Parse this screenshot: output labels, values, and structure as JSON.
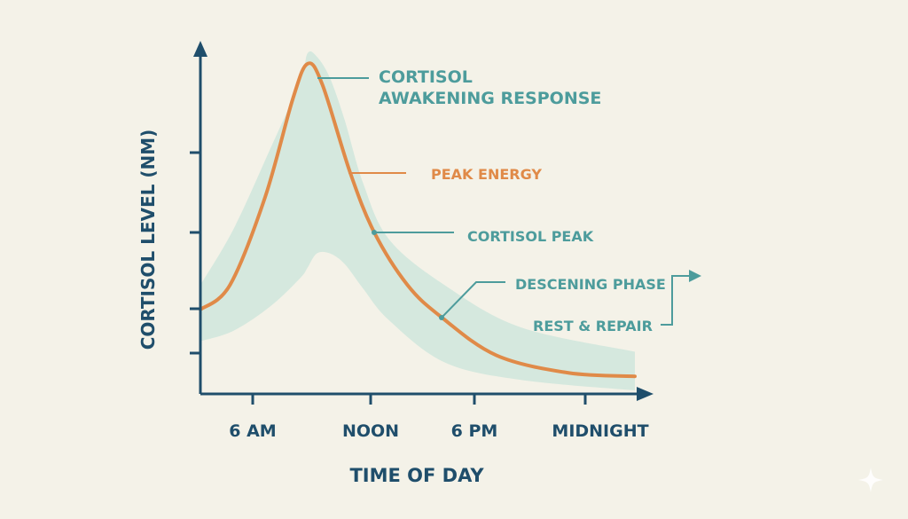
{
  "chart_data": {
    "type": "line",
    "title": "",
    "xlabel": "TIME OF DAY",
    "ylabel": "CORTISOL LEVEL (NM)",
    "x_ticks": [
      {
        "value": 6,
        "label": "6 AM"
      },
      {
        "value": 12,
        "label": "NOON"
      },
      {
        "value": 18,
        "label": "6 PM"
      },
      {
        "value": 24,
        "label": "MIDNIGHT"
      }
    ],
    "y_tick_count": 4,
    "y_tick_labels_shown": false,
    "xlim": [
      3.2,
      26.7
    ],
    "ylim": [
      0,
      100
    ],
    "grid": false,
    "series": [
      {
        "x": [
          3.2,
          4.8,
          6.7,
          8.2,
          9.0,
          9.8,
          11.3,
          12.6,
          14.4,
          16.2,
          19.2,
          23.1,
          26.7
        ],
        "y": [
          24,
          31,
          56,
          84,
          94,
          88,
          63,
          46,
          31,
          22,
          11,
          6,
          5
        ],
        "color": "#e08a48"
      }
    ],
    "band": {
      "x": [
        3.2,
        5.0,
        7.0,
        8.6,
        9.0,
        9.5,
        10.2,
        11.0,
        12.0,
        13.4,
        16.4,
        20.5,
        26.7
      ],
      "upper": [
        31,
        47,
        70,
        89,
        97,
        96,
        90,
        78,
        60,
        44,
        31,
        19,
        12
      ],
      "lower": [
        15,
        18,
        25,
        33,
        36,
        40,
        40,
        37,
        30,
        21,
        9,
        4,
        1
      ],
      "color": "#cfe6dc"
    },
    "annotations": [
      {
        "lines": [
          "CORTISOL",
          "AWAKENING RESPONSE"
        ],
        "color": "#4d9c9c"
      },
      {
        "lines": [
          "PEAK ENERGY"
        ],
        "color": "#e08a48"
      },
      {
        "lines": [
          "CORTISOL PEAK"
        ],
        "color": "#4d9c9c"
      },
      {
        "lines": [
          "DESCENING PHASE"
        ],
        "color": "#4d9c9c"
      },
      {
        "lines": [
          "REST & REPAIR"
        ],
        "color": "#4d9c9c"
      }
    ],
    "axis_color": "#1f4e6b"
  }
}
